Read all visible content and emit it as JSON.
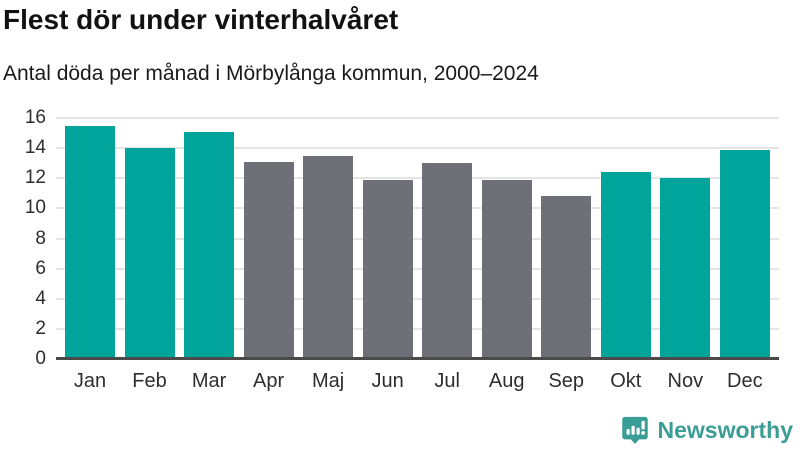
{
  "header": {
    "title": "Flest dör under vinterhalvåret",
    "subtitle": "Antal döda per månad i Mörbylånga kommun, 2000–2024"
  },
  "chart_data": {
    "type": "bar",
    "title": "Flest dör under vinterhalvåret",
    "subtitle": "Antal döda per månad i Mörbylånga kommun, 2000–2024",
    "categories": [
      "Jan",
      "Feb",
      "Mar",
      "Apr",
      "Maj",
      "Jun",
      "Jul",
      "Aug",
      "Sep",
      "Okt",
      "Nov",
      "Dec"
    ],
    "values": [
      15.5,
      14.0,
      15.1,
      13.1,
      13.5,
      11.9,
      13.0,
      11.9,
      10.8,
      12.4,
      12.0,
      13.9
    ],
    "seasons": [
      "winter",
      "winter",
      "winter",
      "summer",
      "summer",
      "summer",
      "summer",
      "summer",
      "summer",
      "winter",
      "winter",
      "winter"
    ],
    "colors": {
      "winter": "#00a49b",
      "summer": "#6f6f78"
    },
    "xlabel": "",
    "ylabel": "",
    "ylim": [
      0,
      16
    ],
    "yticks": [
      0,
      2,
      4,
      6,
      8,
      10,
      12,
      14,
      16
    ],
    "grid": true,
    "legend": "none",
    "gridline_color": "#e4e4e4",
    "axis_line_color": "#4a4a4a"
  },
  "footer": {
    "brand": "Newsworthy",
    "brand_color": "#3b9e96",
    "logo_icon": "bar-chart-speech-bubble-icon"
  }
}
